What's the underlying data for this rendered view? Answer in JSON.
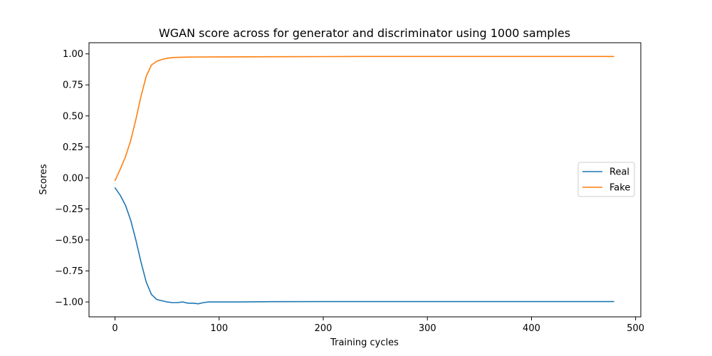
{
  "chart_data": {
    "type": "line",
    "title": "WGAN score across for generator and discriminator using 1000 samples",
    "xlabel": "Training cycles",
    "ylabel": "Scores",
    "xlim": [
      -25,
      505
    ],
    "ylim": [
      -1.12,
      1.09
    ],
    "xticks": [
      0,
      100,
      200,
      300,
      400,
      500
    ],
    "yticks": [
      -1.0,
      -0.75,
      -0.5,
      -0.25,
      0.0,
      0.25,
      0.5,
      0.75,
      1.0
    ],
    "xtick_labels": [
      "0",
      "100",
      "200",
      "300",
      "400",
      "500"
    ],
    "ytick_labels": [
      "−1.00",
      "−0.75",
      "−0.50",
      "−0.25",
      "0.00",
      "0.25",
      "0.50",
      "0.75",
      "1.00"
    ],
    "grid": false,
    "legend_position": "center-right",
    "series": [
      {
        "name": "Real",
        "color": "#1f77b4",
        "x": [
          0,
          5,
          10,
          15,
          20,
          25,
          30,
          35,
          40,
          45,
          50,
          55,
          60,
          65,
          70,
          75,
          80,
          85,
          90,
          100,
          120,
          150,
          200,
          250,
          300,
          350,
          400,
          450,
          479
        ],
        "y": [
          -0.08,
          -0.14,
          -0.22,
          -0.34,
          -0.5,
          -0.68,
          -0.84,
          -0.94,
          -0.98,
          -0.99,
          -1.0,
          -1.005,
          -1.005,
          -1.0,
          -1.01,
          -1.01,
          -1.015,
          -1.005,
          -1.0,
          -1.0,
          -1.0,
          -0.998,
          -0.997,
          -0.997,
          -0.997,
          -0.997,
          -0.997,
          -0.997,
          -0.997
        ]
      },
      {
        "name": "Fake",
        "color": "#ff7f0e",
        "x": [
          0,
          5,
          10,
          15,
          20,
          25,
          30,
          35,
          40,
          45,
          50,
          55,
          60,
          70,
          80,
          100,
          150,
          200,
          250,
          300,
          350,
          400,
          450,
          479
        ],
        "y": [
          -0.02,
          0.07,
          0.17,
          0.3,
          0.47,
          0.66,
          0.82,
          0.91,
          0.94,
          0.955,
          0.965,
          0.97,
          0.972,
          0.974,
          0.975,
          0.976,
          0.977,
          0.978,
          0.979,
          0.979,
          0.979,
          0.979,
          0.979,
          0.979
        ]
      }
    ]
  }
}
